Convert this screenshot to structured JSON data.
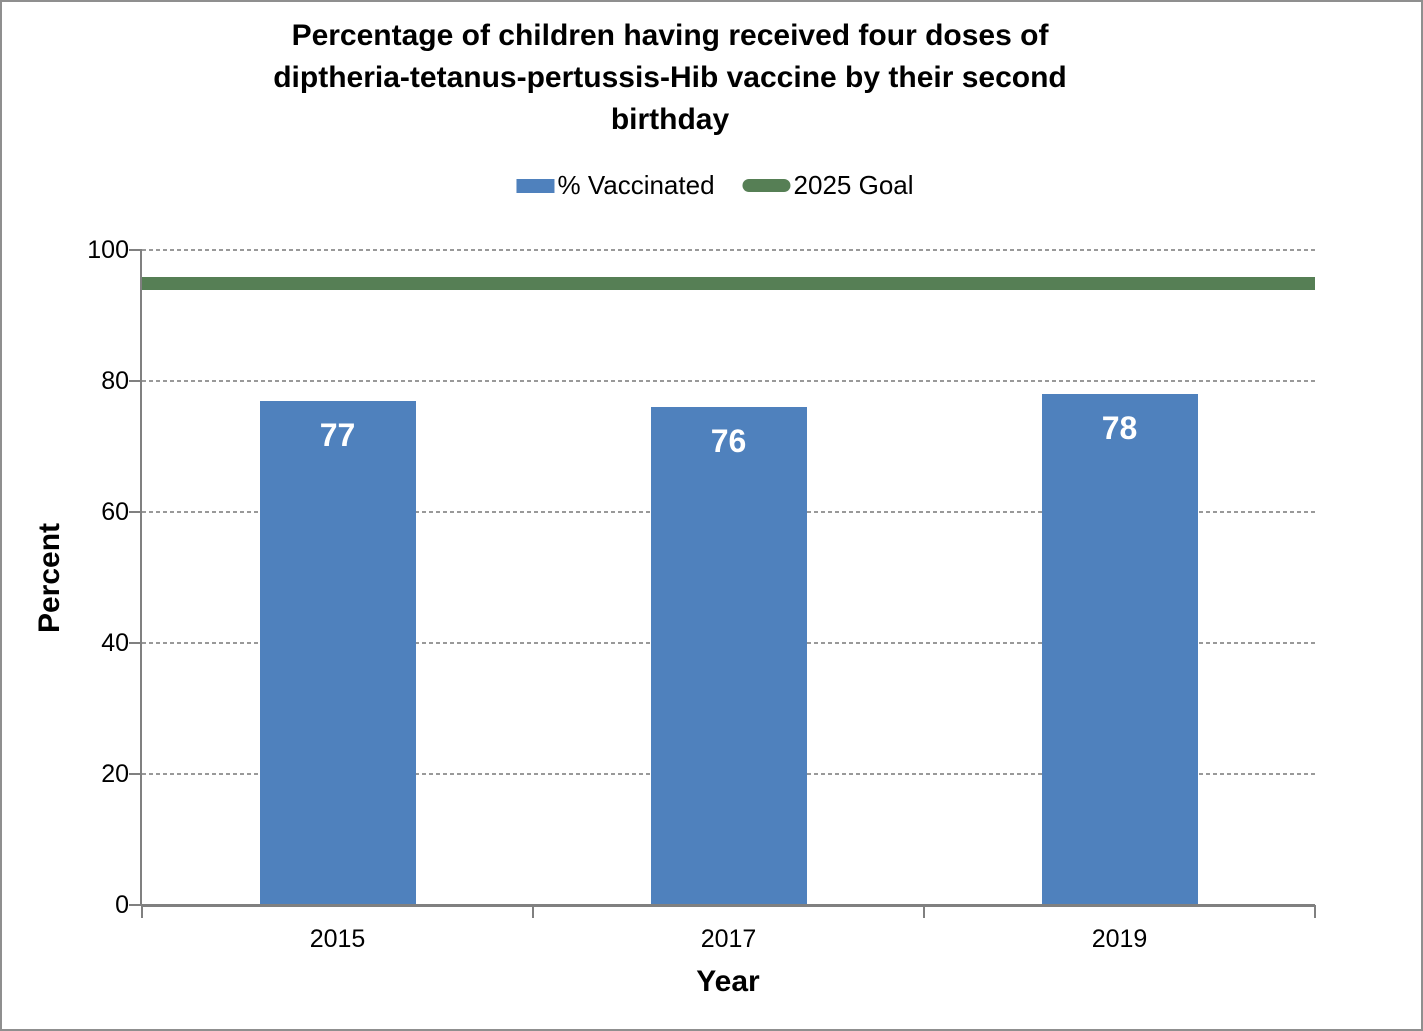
{
  "window": {
    "background": "#FFFFFF",
    "border_color": "#8F8F8F"
  },
  "title": {
    "lines": [
      "Percentage of children having received four doses of",
      "diptheria-tetanus-pertussis-Hib vaccine by their second",
      "birthday"
    ]
  },
  "legend": {
    "items": [
      {
        "label": "% Vaccinated",
        "swatch": "bar",
        "color": "#4F81BD"
      },
      {
        "label": "2025 Goal",
        "swatch": "line",
        "color": "#567F55"
      }
    ]
  },
  "chart_data": {
    "type": "bar",
    "title": "Percentage of children having received four doses of diptheria-tetanus-pertussis-Hib vaccine by their second birthday",
    "categories": [
      "2015",
      "2017",
      "2019"
    ],
    "series": [
      {
        "name": "% Vaccinated",
        "type": "bar",
        "values": [
          77,
          76,
          78
        ],
        "color": "#4F81BD",
        "data_labels": [
          "77",
          "76",
          "78"
        ],
        "data_label_color": "#FFFFFF"
      },
      {
        "name": "2025 Goal",
        "type": "horizontal-line",
        "value": 95,
        "color": "#567F55"
      }
    ],
    "xlabel": "Year",
    "ylabel": "Percent",
    "ylim": [
      0,
      100
    ],
    "yticks": [
      0,
      20,
      40,
      60,
      80,
      100
    ],
    "grid": "horizontal-dashed",
    "gridline_color": "#999999",
    "axis_color": "#808080",
    "legend_position": "top-center"
  }
}
